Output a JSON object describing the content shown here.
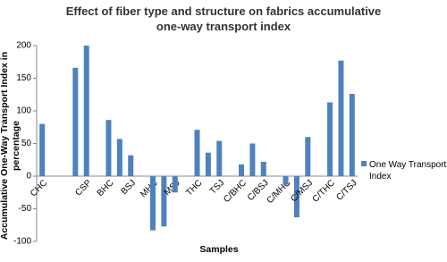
{
  "chart_data": {
    "type": "bar",
    "title": "Effect of fiber type and structure on fabrics accumulative one-way transport index",
    "x_label": "Samples",
    "y_label": "Accumulative One-Way Transport Index in percentage",
    "categories": [
      "CHC",
      null,
      null,
      null,
      "CSP",
      null,
      "BHC",
      null,
      "BSJ",
      null,
      "MHC",
      null,
      "MSJ",
      null,
      "THC",
      null,
      "TSJ",
      null,
      "C/BHC",
      null,
      "C/BSJ",
      null,
      "C/MHC",
      null,
      "C/MSJ",
      null,
      "C/THC",
      null,
      "C/TSJ"
    ],
    "series": [
      {
        "name": "One Way Transport Index",
        "color": "#4f81bd",
        "values": [
          80,
          null,
          null,
          166,
          200,
          null,
          86,
          57,
          32,
          null,
          -83,
          -77,
          -25,
          null,
          71,
          36,
          54,
          null,
          18,
          50,
          22,
          null,
          -13,
          -63,
          60,
          null,
          113,
          177,
          126
        ]
      }
    ],
    "ylim": [
      -100,
      200
    ],
    "yticks": [
      -100,
      -50,
      0,
      50,
      100,
      150,
      200
    ],
    "grid": false,
    "legend": "right"
  }
}
